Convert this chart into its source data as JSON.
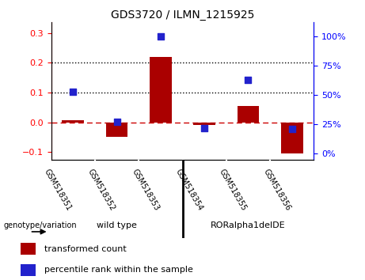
{
  "title": "GDS3720 / ILMN_1215925",
  "samples": [
    "GSM518351",
    "GSM518352",
    "GSM518353",
    "GSM518354",
    "GSM518355",
    "GSM518356"
  ],
  "transformed_count": [
    0.008,
    -0.05,
    0.22,
    -0.008,
    0.055,
    -0.105
  ],
  "percentile_rank_pct": [
    53,
    27,
    100,
    22,
    63,
    21
  ],
  "left_ylim": [
    -0.125,
    0.335
  ],
  "left_yticks": [
    -0.1,
    0.0,
    0.1,
    0.2,
    0.3
  ],
  "right_ylim": [
    -5,
    112
  ],
  "right_yticks": [
    0,
    25,
    50,
    75,
    100
  ],
  "right_yticklabels": [
    "0%",
    "25%",
    "50%",
    "75%",
    "100%"
  ],
  "bar_color": "#aa0000",
  "dot_color": "#2222cc",
  "zero_line_color": "#cc0000",
  "dotted_line_color": "#000000",
  "group_area_color": "#90ee90",
  "label_area_color": "#c8c8c8",
  "legend_bar_label": "transformed count",
  "legend_dot_label": "percentile rank within the sample",
  "genotype_label": "genotype/variation",
  "group1_label": "wild type",
  "group2_label": "RORalpha1delDE"
}
